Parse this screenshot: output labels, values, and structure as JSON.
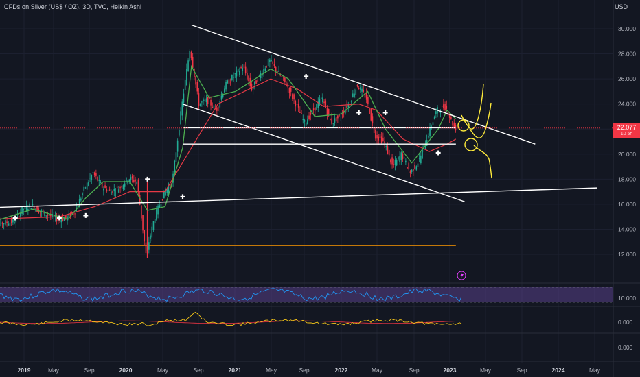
{
  "header": {
    "symbol_title": "CFDs on Silver (US$ / OZ), 3D, TVC, Heikin Ashi",
    "currency": "USD"
  },
  "price_badge": {
    "last_price": "22.077",
    "countdown": "10 5h"
  },
  "indicator_badge_icon": "lightning-icon",
  "colors": {
    "background": "#131722",
    "up_candle": "#26a69a",
    "bull_body": "#22ab94",
    "down_candle": "#f23645",
    "fast_ma": "#4caf50",
    "slow_ma": "#e53945",
    "trend_lines": "#ffffff",
    "horizontal_support": "#ff9800",
    "drawing_yellow": "#ffeb3b",
    "rsi_band": "#7e57c2",
    "rsi_line": "#2196f3",
    "macd_line": "#f5c518"
  },
  "chart_data": {
    "type": "candlestick",
    "chart_style": "Heikin Ashi",
    "timeframe": "3D",
    "x_tick_labels": [
      "2019",
      "May",
      "Sep",
      "2020",
      "May",
      "Sep",
      "2021",
      "May",
      "Sep",
      "2022",
      "May",
      "Sep",
      "2023",
      "May",
      "Sep",
      "2024",
      "May"
    ],
    "year_tick_labels": [
      "2019",
      "2020",
      "2021",
      "2022",
      "2023",
      "2024"
    ],
    "y_tick_labels": [
      "30.000",
      "28.000",
      "26.000",
      "24.000",
      "22.000",
      "20.000",
      "18.000",
      "16.000",
      "14.000",
      "12.000"
    ],
    "ylim": [
      11.5,
      31
    ],
    "last_price": 22.077,
    "price_path": [
      [
        "2018-09",
        14.4
      ],
      [
        "2018-12",
        14.6
      ],
      [
        "2019-01",
        15.6
      ],
      [
        "2019-02",
        15.9
      ],
      [
        "2019-03",
        15.4
      ],
      [
        "2019-05",
        14.8
      ],
      [
        "2019-06",
        14.9
      ],
      [
        "2019-07",
        15.5
      ],
      [
        "2019-08",
        17.2
      ],
      [
        "2019-09",
        18.5
      ],
      [
        "2019-10",
        17.4
      ],
      [
        "2019-11",
        17.0
      ],
      [
        "2019-12",
        17.3
      ],
      [
        "2020-01",
        18.1
      ],
      [
        "2020-02",
        17.8
      ],
      [
        "2020-03",
        12.0
      ],
      [
        "2020-04",
        15.0
      ],
      [
        "2020-05",
        16.8
      ],
      [
        "2020-06",
        17.8
      ],
      [
        "2020-07",
        23.5
      ],
      [
        "2020-08",
        28.5
      ],
      [
        "2020-09",
        24.0
      ],
      [
        "2020-10",
        24.3
      ],
      [
        "2020-11",
        23.5
      ],
      [
        "2020-12",
        25.5
      ],
      [
        "2021-02",
        27.0
      ],
      [
        "2021-03",
        25.2
      ],
      [
        "2021-05",
        27.5
      ],
      [
        "2021-06",
        26.5
      ],
      [
        "2021-07",
        25.5
      ],
      [
        "2021-09",
        22.5
      ],
      [
        "2021-10",
        23.5
      ],
      [
        "2021-11",
        24.5
      ],
      [
        "2021-12",
        22.5
      ],
      [
        "2022-01",
        23.0
      ],
      [
        "2022-02",
        24.0
      ],
      [
        "2022-03",
        25.5
      ],
      [
        "2022-04",
        24.5
      ],
      [
        "2022-05",
        21.5
      ],
      [
        "2022-06",
        21.0
      ],
      [
        "2022-07",
        19.0
      ],
      [
        "2022-08",
        20.0
      ],
      [
        "2022-09",
        18.5
      ],
      [
        "2022-10",
        19.5
      ],
      [
        "2022-11",
        21.5
      ],
      [
        "2022-12",
        23.5
      ],
      [
        "2023-01",
        23.8
      ],
      [
        "2023-02",
        22.077
      ]
    ],
    "fast_ma_path": [
      [
        "2018-09",
        14.5
      ],
      [
        "2019-02",
        15.6
      ],
      [
        "2019-06",
        14.8
      ],
      [
        "2019-08",
        16.5
      ],
      [
        "2019-10",
        17.8
      ],
      [
        "2020-01",
        17.8
      ],
      [
        "2020-03",
        15.5
      ],
      [
        "2020-05",
        15.8
      ],
      [
        "2020-07",
        20.5
      ],
      [
        "2020-08",
        27.0
      ],
      [
        "2020-10",
        24.5
      ],
      [
        "2021-01",
        25.0
      ],
      [
        "2021-05",
        26.8
      ],
      [
        "2021-07",
        26.0
      ],
      [
        "2021-10",
        23.0
      ],
      [
        "2022-01",
        23.2
      ],
      [
        "2022-04",
        25.0
      ],
      [
        "2022-06",
        22.0
      ],
      [
        "2022-09",
        19.3
      ],
      [
        "2022-12",
        22.0
      ],
      [
        "2023-01",
        23.5
      ],
      [
        "2023-02",
        22.8
      ]
    ],
    "slow_ma_path": [
      [
        "2018-09",
        14.8
      ],
      [
        "2019-05",
        15.0
      ],
      [
        "2019-09",
        15.8
      ],
      [
        "2020-01",
        17.0
      ],
      [
        "2020-05",
        17.0
      ],
      [
        "2020-08",
        20.5
      ],
      [
        "2020-11",
        24.0
      ],
      [
        "2021-05",
        26.0
      ],
      [
        "2021-08",
        25.2
      ],
      [
        "2021-11",
        23.8
      ],
      [
        "2022-03",
        24.0
      ],
      [
        "2022-05",
        23.5
      ],
      [
        "2022-08",
        21.2
      ],
      [
        "2022-11",
        20.2
      ],
      [
        "2023-01",
        20.8
      ],
      [
        "2023-02",
        21.2
      ]
    ],
    "trend_lines": [
      {
        "name": "upper-channel",
        "from": [
          "2020-08",
          30.3
        ],
        "to": [
          "2023-11",
          20.8
        ]
      },
      {
        "name": "lower-channel",
        "from": [
          "2020-07",
          24.0
        ],
        "to": [
          "2023-03",
          16.2
        ]
      },
      {
        "name": "long-term-support",
        "from": [
          "2018-08",
          15.7
        ],
        "to": [
          "2024-06",
          17.3
        ]
      },
      {
        "name": "resistance-22",
        "from": [
          "2020-07",
          22.1
        ],
        "to": [
          "2023-02",
          22.1
        ]
      },
      {
        "name": "support-20.8",
        "from": [
          "2020-07",
          20.8
        ],
        "to": [
          "2023-02",
          20.8
        ]
      }
    ],
    "horizontal_support": {
      "value": 12.7,
      "from": "2018-08",
      "to": "2023-02"
    },
    "signal_markers": [
      [
        "2018-12",
        14.9
      ],
      [
        "2019-05",
        14.9
      ],
      [
        "2019-08",
        15.1
      ],
      [
        "2020-03",
        18.0
      ],
      [
        "2020-07",
        16.6
      ],
      [
        "2021-09",
        26.2
      ],
      [
        "2022-03",
        23.3
      ],
      [
        "2022-06",
        23.3
      ],
      [
        "2022-12",
        20.1
      ]
    ],
    "rsi_panel": {
      "band_upper": 70,
      "band_lower": 30,
      "ylim": [
        0,
        100
      ]
    },
    "macd_panel": {
      "zero_label": "0.000"
    }
  }
}
